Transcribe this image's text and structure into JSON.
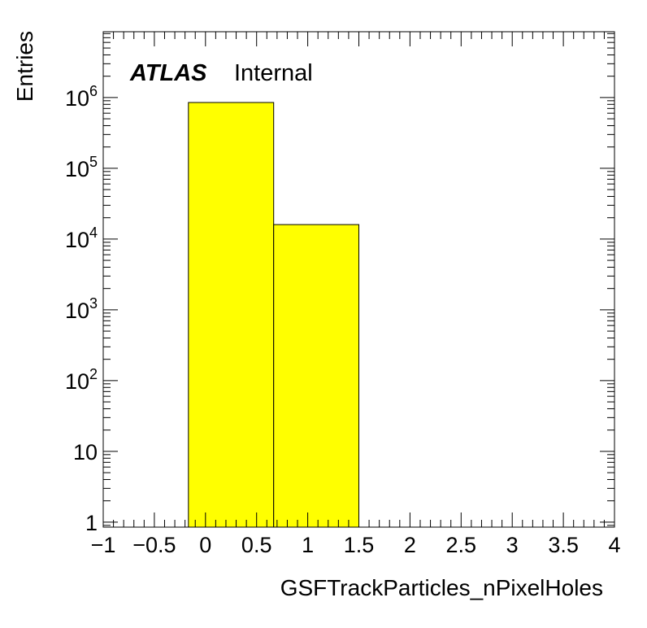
{
  "chart_data": {
    "type": "bar",
    "title": "",
    "xlabel": "GSFTrackParticles_nPixelHoles",
    "ylabel": "Entries",
    "x_range": [
      -1,
      4
    ],
    "y_range": [
      0.85,
      8500000
    ],
    "y_scale": "log",
    "grid": false,
    "legend": "none",
    "bar_color": "#ffff00",
    "bar_outline": "#000000",
    "bins": [
      {
        "x_low": -0.167,
        "x_high": 0.667,
        "value": 850000
      },
      {
        "x_low": 0.667,
        "x_high": 1.5,
        "value": 16000
      }
    ],
    "x_tick_labels": [
      {
        "value": -1,
        "label": "−1"
      },
      {
        "value": -0.5,
        "label": "−0.5"
      },
      {
        "value": 0,
        "label": "0"
      },
      {
        "value": 0.5,
        "label": "0.5"
      },
      {
        "value": 1,
        "label": "1"
      },
      {
        "value": 1.5,
        "label": "1.5"
      },
      {
        "value": 2,
        "label": "2"
      },
      {
        "value": 2.5,
        "label": "2.5"
      },
      {
        "value": 3,
        "label": "3"
      },
      {
        "value": 3.5,
        "label": "3.5"
      },
      {
        "value": 4,
        "label": "4"
      }
    ],
    "y_tick_labels": [
      {
        "value": 1,
        "base": "1",
        "exp": ""
      },
      {
        "value": 10,
        "base": "10",
        "exp": ""
      },
      {
        "value": 100,
        "base": "10",
        "exp": "2"
      },
      {
        "value": 1000,
        "base": "10",
        "exp": "3"
      },
      {
        "value": 10000,
        "base": "10",
        "exp": "4"
      },
      {
        "value": 100000,
        "base": "10",
        "exp": "5"
      },
      {
        "value": 1000000,
        "base": "10",
        "exp": "6"
      }
    ],
    "annotations": {
      "experiment": "ATLAS",
      "status": "Internal"
    }
  }
}
